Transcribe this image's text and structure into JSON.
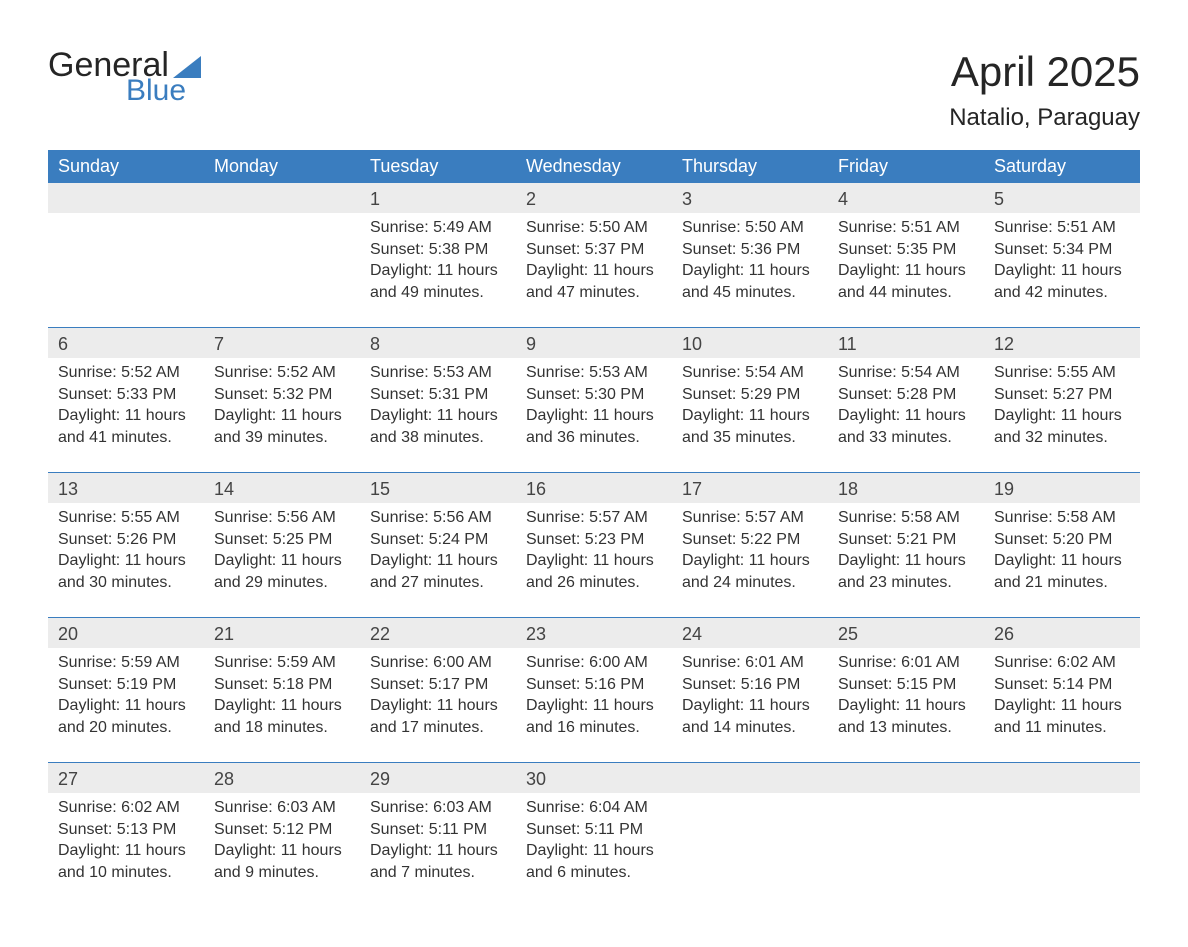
{
  "logo": {
    "word1": "General",
    "word2": "Blue"
  },
  "header": {
    "title": "April 2025",
    "location": "Natalio, Paraguay"
  },
  "colors": {
    "header_bg": "#3a7dbf",
    "header_text": "#ffffff",
    "date_row_bg": "#ececec",
    "week_separator": "#3a7dbf",
    "body_text": "#333333",
    "page_bg": "#ffffff"
  },
  "day_names": [
    "Sunday",
    "Monday",
    "Tuesday",
    "Wednesday",
    "Thursday",
    "Friday",
    "Saturday"
  ],
  "weeks": [
    [
      null,
      null,
      {
        "n": "1",
        "sunrise": "5:49 AM",
        "sunset": "5:38 PM",
        "daylight": "11 hours and 49 minutes."
      },
      {
        "n": "2",
        "sunrise": "5:50 AM",
        "sunset": "5:37 PM",
        "daylight": "11 hours and 47 minutes."
      },
      {
        "n": "3",
        "sunrise": "5:50 AM",
        "sunset": "5:36 PM",
        "daylight": "11 hours and 45 minutes."
      },
      {
        "n": "4",
        "sunrise": "5:51 AM",
        "sunset": "5:35 PM",
        "daylight": "11 hours and 44 minutes."
      },
      {
        "n": "5",
        "sunrise": "5:51 AM",
        "sunset": "5:34 PM",
        "daylight": "11 hours and 42 minutes."
      }
    ],
    [
      {
        "n": "6",
        "sunrise": "5:52 AM",
        "sunset": "5:33 PM",
        "daylight": "11 hours and 41 minutes."
      },
      {
        "n": "7",
        "sunrise": "5:52 AM",
        "sunset": "5:32 PM",
        "daylight": "11 hours and 39 minutes."
      },
      {
        "n": "8",
        "sunrise": "5:53 AM",
        "sunset": "5:31 PM",
        "daylight": "11 hours and 38 minutes."
      },
      {
        "n": "9",
        "sunrise": "5:53 AM",
        "sunset": "5:30 PM",
        "daylight": "11 hours and 36 minutes."
      },
      {
        "n": "10",
        "sunrise": "5:54 AM",
        "sunset": "5:29 PM",
        "daylight": "11 hours and 35 minutes."
      },
      {
        "n": "11",
        "sunrise": "5:54 AM",
        "sunset": "5:28 PM",
        "daylight": "11 hours and 33 minutes."
      },
      {
        "n": "12",
        "sunrise": "5:55 AM",
        "sunset": "5:27 PM",
        "daylight": "11 hours and 32 minutes."
      }
    ],
    [
      {
        "n": "13",
        "sunrise": "5:55 AM",
        "sunset": "5:26 PM",
        "daylight": "11 hours and 30 minutes."
      },
      {
        "n": "14",
        "sunrise": "5:56 AM",
        "sunset": "5:25 PM",
        "daylight": "11 hours and 29 minutes."
      },
      {
        "n": "15",
        "sunrise": "5:56 AM",
        "sunset": "5:24 PM",
        "daylight": "11 hours and 27 minutes."
      },
      {
        "n": "16",
        "sunrise": "5:57 AM",
        "sunset": "5:23 PM",
        "daylight": "11 hours and 26 minutes."
      },
      {
        "n": "17",
        "sunrise": "5:57 AM",
        "sunset": "5:22 PM",
        "daylight": "11 hours and 24 minutes."
      },
      {
        "n": "18",
        "sunrise": "5:58 AM",
        "sunset": "5:21 PM",
        "daylight": "11 hours and 23 minutes."
      },
      {
        "n": "19",
        "sunrise": "5:58 AM",
        "sunset": "5:20 PM",
        "daylight": "11 hours and 21 minutes."
      }
    ],
    [
      {
        "n": "20",
        "sunrise": "5:59 AM",
        "sunset": "5:19 PM",
        "daylight": "11 hours and 20 minutes."
      },
      {
        "n": "21",
        "sunrise": "5:59 AM",
        "sunset": "5:18 PM",
        "daylight": "11 hours and 18 minutes."
      },
      {
        "n": "22",
        "sunrise": "6:00 AM",
        "sunset": "5:17 PM",
        "daylight": "11 hours and 17 minutes."
      },
      {
        "n": "23",
        "sunrise": "6:00 AM",
        "sunset": "5:16 PM",
        "daylight": "11 hours and 16 minutes."
      },
      {
        "n": "24",
        "sunrise": "6:01 AM",
        "sunset": "5:16 PM",
        "daylight": "11 hours and 14 minutes."
      },
      {
        "n": "25",
        "sunrise": "6:01 AM",
        "sunset": "5:15 PM",
        "daylight": "11 hours and 13 minutes."
      },
      {
        "n": "26",
        "sunrise": "6:02 AM",
        "sunset": "5:14 PM",
        "daylight": "11 hours and 11 minutes."
      }
    ],
    [
      {
        "n": "27",
        "sunrise": "6:02 AM",
        "sunset": "5:13 PM",
        "daylight": "11 hours and 10 minutes."
      },
      {
        "n": "28",
        "sunrise": "6:03 AM",
        "sunset": "5:12 PM",
        "daylight": "11 hours and 9 minutes."
      },
      {
        "n": "29",
        "sunrise": "6:03 AM",
        "sunset": "5:11 PM",
        "daylight": "11 hours and 7 minutes."
      },
      {
        "n": "30",
        "sunrise": "6:04 AM",
        "sunset": "5:11 PM",
        "daylight": "11 hours and 6 minutes."
      },
      null,
      null,
      null
    ]
  ],
  "labels": {
    "sunrise": "Sunrise:",
    "sunset": "Sunset:",
    "daylight": "Daylight:"
  }
}
